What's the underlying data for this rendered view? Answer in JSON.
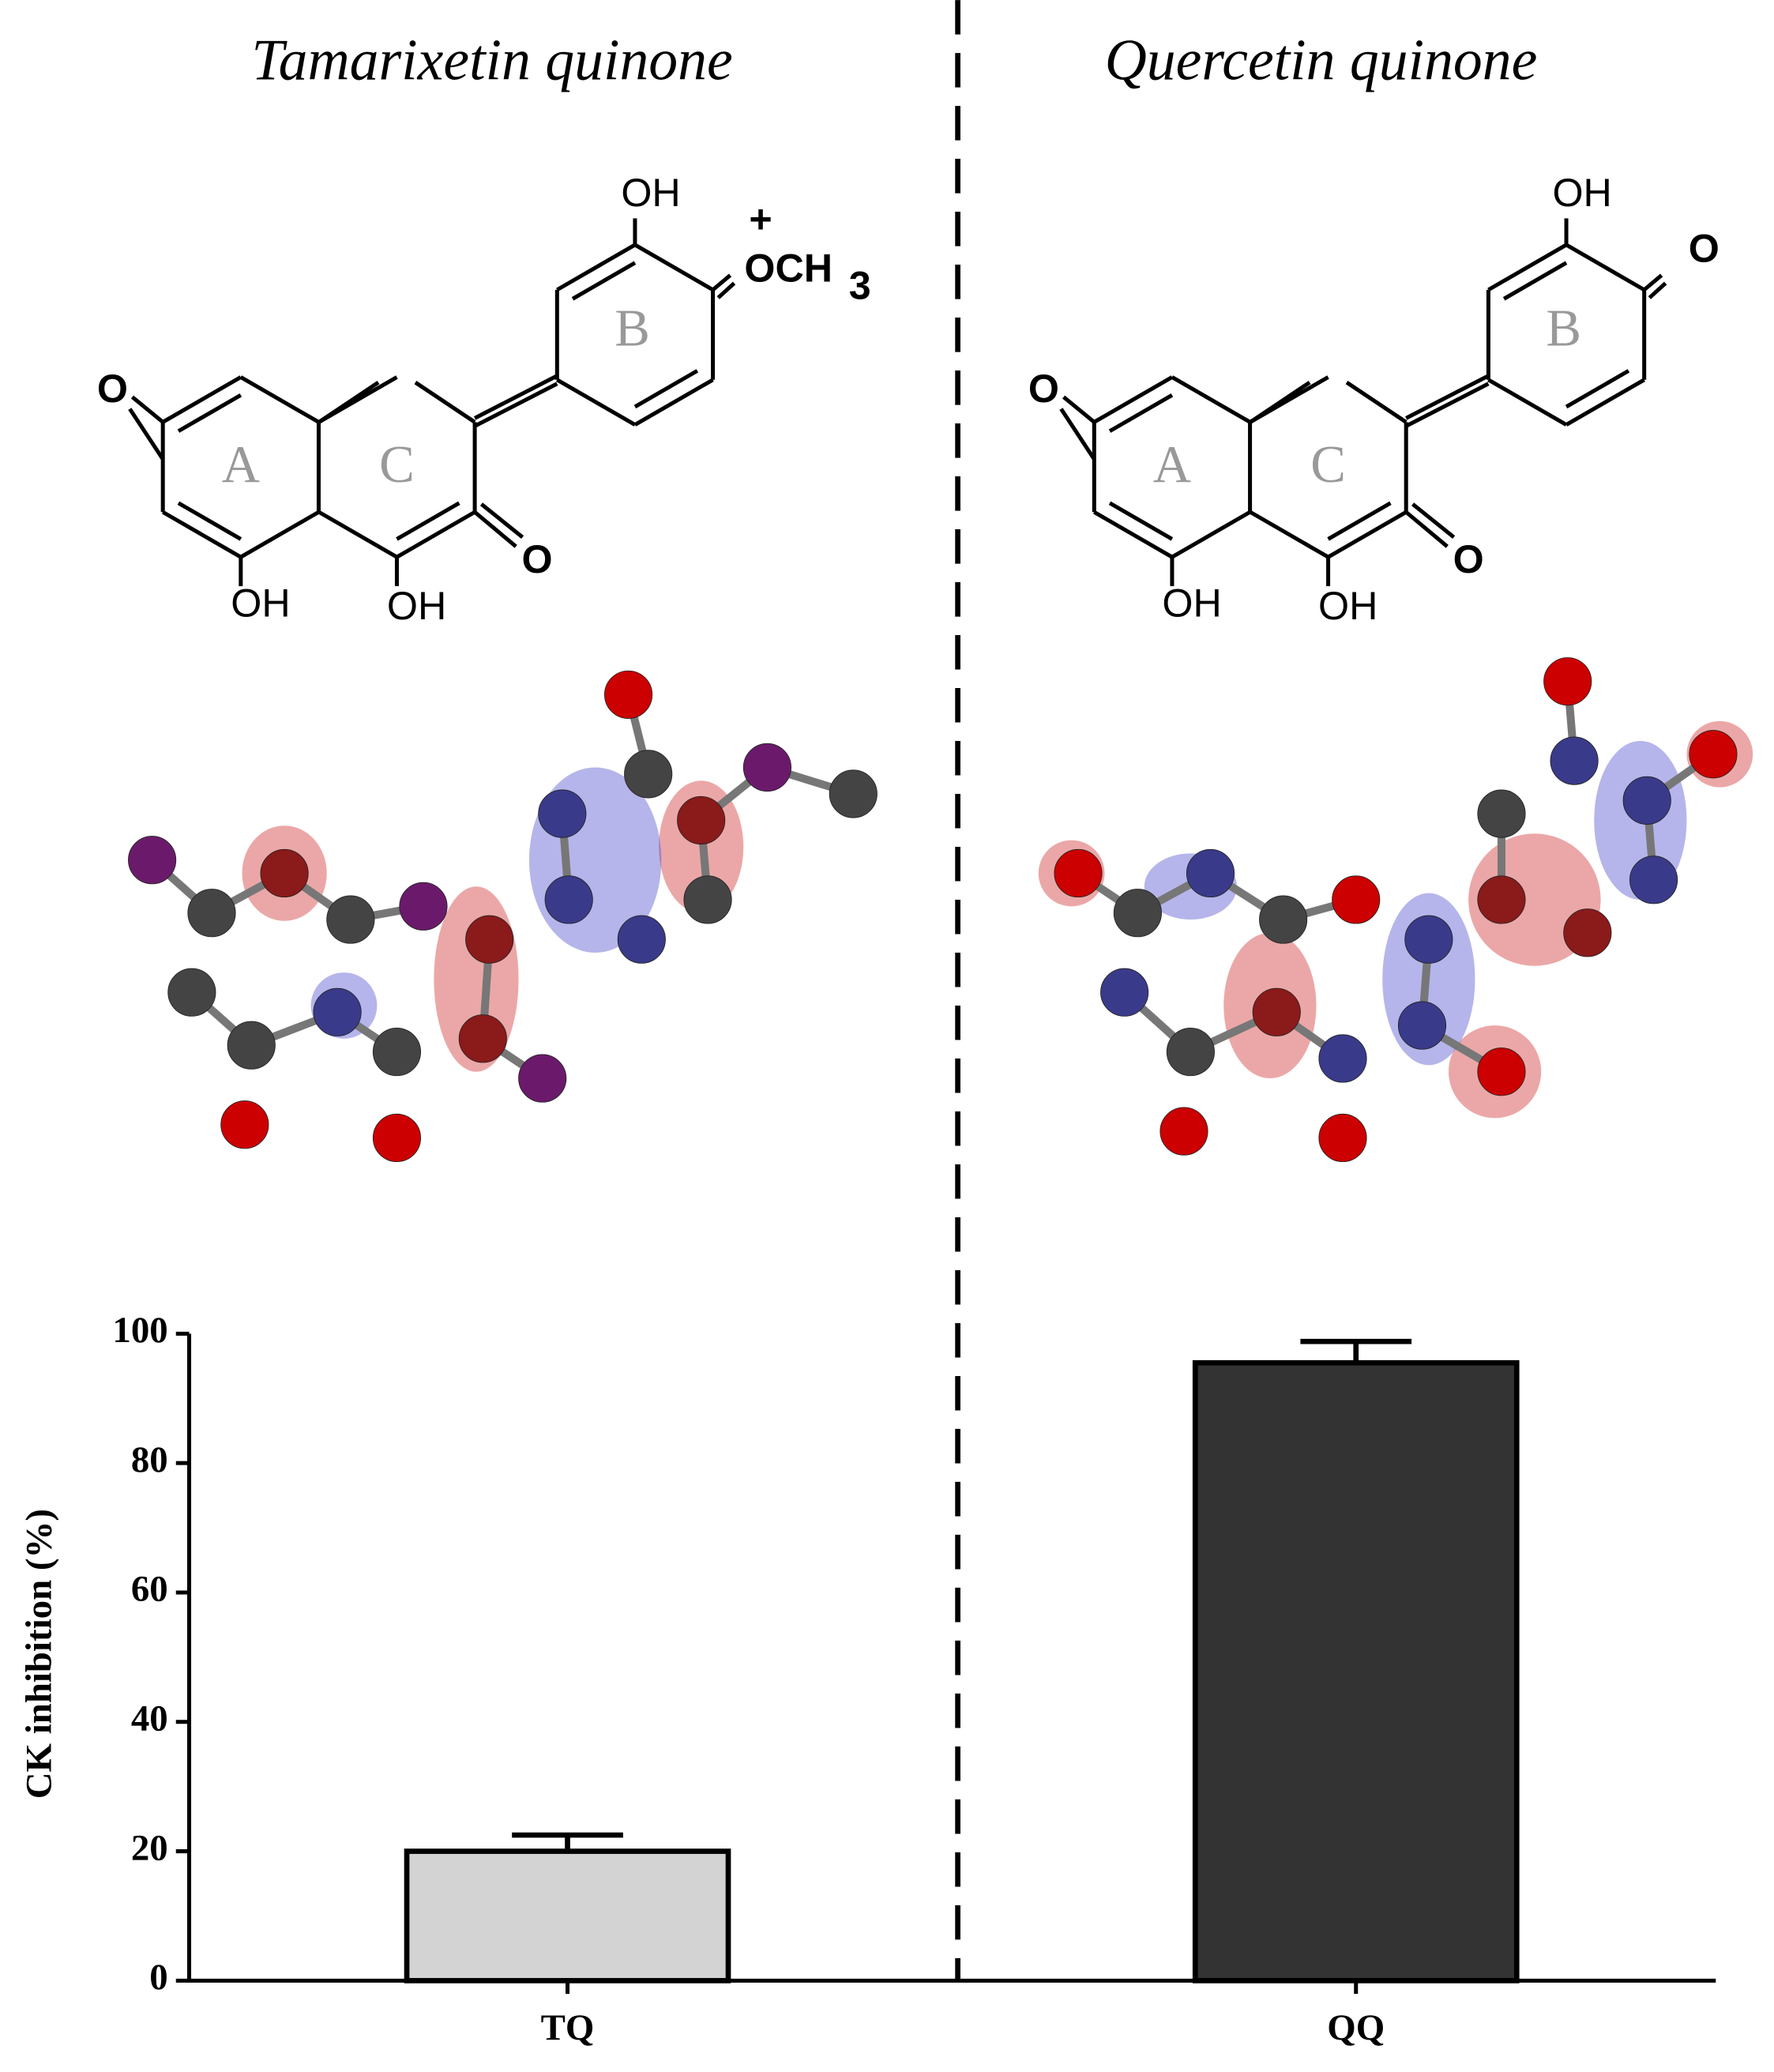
{
  "panels": [
    {
      "title": "Tamarixetin quinone",
      "ring_labels": [
        "A",
        "C",
        "B"
      ],
      "atoms": [
        "O",
        "OH",
        "OH",
        "O",
        "OH",
        "OCH",
        "3",
        "+"
      ]
    },
    {
      "title": "Quercetin quinone",
      "ring_labels": [
        "A",
        "C",
        "B"
      ],
      "atoms": [
        "O",
        "OH",
        "OH",
        "O",
        "OH",
        "O"
      ]
    }
  ],
  "chart_data": {
    "type": "bar",
    "y_label": "CK inhibition (%)",
    "categories": [
      "TQ",
      "QQ"
    ],
    "values": [
      20,
      95.5
    ],
    "errors": [
      2.5,
      3.3
    ],
    "colors": [
      "#d3d3d3",
      "#333333"
    ],
    "ylim": [
      0,
      100
    ],
    "yticks": [
      0,
      20,
      40,
      60,
      80,
      100
    ]
  }
}
